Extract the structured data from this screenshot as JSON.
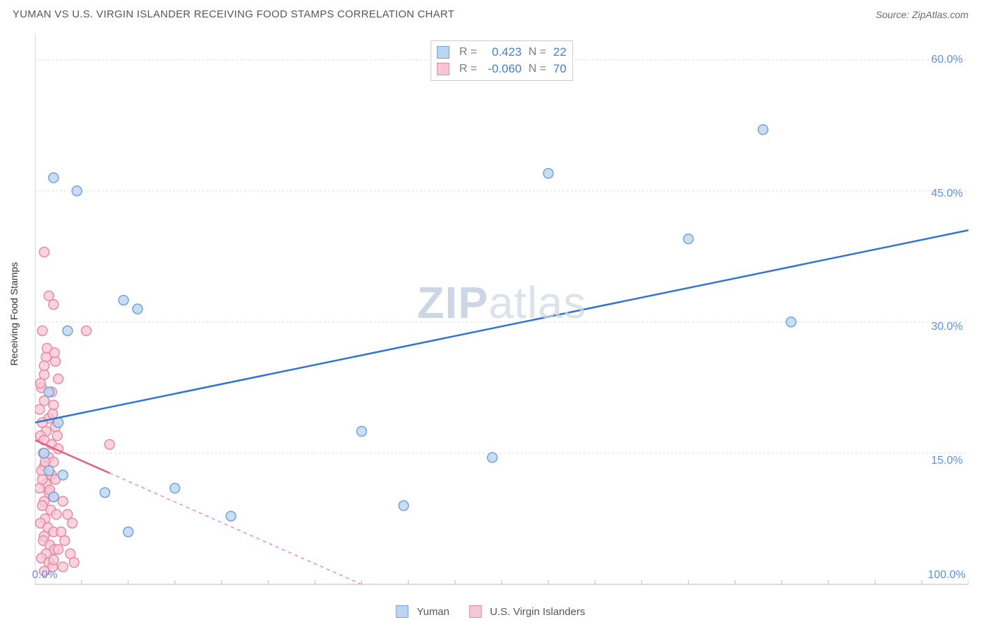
{
  "title": "YUMAN VS U.S. VIRGIN ISLANDER RECEIVING FOOD STAMPS CORRELATION CHART",
  "source": "Source: ZipAtlas.com",
  "ylabel": "Receiving Food Stamps",
  "watermark_a": "ZIP",
  "watermark_b": "atlas",
  "chart": {
    "type": "scatter",
    "background_color": "#ffffff",
    "grid_color": "#dcdce2",
    "axis_color": "#b9b9c0",
    "xlim": [
      0,
      100
    ],
    "ylim": [
      0,
      63
    ],
    "yticks": [
      15.0,
      30.0,
      45.0,
      60.0
    ],
    "ytick_labels": [
      "15.0%",
      "30.0%",
      "45.0%",
      "60.0%"
    ],
    "xticks_major": [
      0,
      50,
      100
    ],
    "xtick_labels": [
      "0.0%",
      "",
      "100.0%"
    ],
    "marker_radius": 7,
    "marker_stroke_width": 1.5,
    "trend_line_width": 2.5
  },
  "series": [
    {
      "name": "Yuman",
      "fill_color": "#bcd5f0",
      "stroke_color": "#6fa3de",
      "line_color": "#2f74d0",
      "r": "0.423",
      "n": "22",
      "trend": {
        "x1": 0,
        "y1": 18.5,
        "x2": 100,
        "y2": 40.5,
        "dashed": false
      },
      "points": [
        [
          2.0,
          46.5
        ],
        [
          4.5,
          45.0
        ],
        [
          3.5,
          29.0
        ],
        [
          2.5,
          18.5
        ],
        [
          1.0,
          15.0
        ],
        [
          1.5,
          13.0
        ],
        [
          2.0,
          10.0
        ],
        [
          9.5,
          32.5
        ],
        [
          11.0,
          31.5
        ],
        [
          15.0,
          11.0
        ],
        [
          7.5,
          10.5
        ],
        [
          10.0,
          6.0
        ],
        [
          21.0,
          7.8
        ],
        [
          35.0,
          17.5
        ],
        [
          39.5,
          9.0
        ],
        [
          49.0,
          14.5
        ],
        [
          55.0,
          47.0
        ],
        [
          70.0,
          39.5
        ],
        [
          78.0,
          52.0
        ],
        [
          81.0,
          30.0
        ],
        [
          1.5,
          22.0
        ],
        [
          3.0,
          12.5
        ]
      ]
    },
    {
      "name": "U.S. Virgin Islanders",
      "fill_color": "#f7c6d3",
      "stroke_color": "#e88aa3",
      "line_color": "#e25c82",
      "r": "-0.060",
      "n": "70",
      "trend": {
        "x1": 0,
        "y1": 16.5,
        "x2": 35,
        "y2": 0,
        "dashed_from_x": 8
      },
      "points": [
        [
          1.0,
          38.0
        ],
        [
          1.5,
          33.0
        ],
        [
          2.0,
          32.0
        ],
        [
          0.8,
          29.0
        ],
        [
          5.5,
          29.0
        ],
        [
          1.2,
          26.0
        ],
        [
          2.2,
          25.5
        ],
        [
          1.0,
          24.0
        ],
        [
          2.5,
          23.5
        ],
        [
          0.7,
          22.5
        ],
        [
          1.8,
          22.0
        ],
        [
          1.0,
          21.0
        ],
        [
          2.0,
          20.5
        ],
        [
          0.5,
          20.0
        ],
        [
          1.5,
          19.0
        ],
        [
          0.8,
          18.5
        ],
        [
          2.2,
          18.0
        ],
        [
          1.2,
          17.5
        ],
        [
          0.6,
          17.0
        ],
        [
          1.0,
          16.5
        ],
        [
          1.8,
          16.0
        ],
        [
          2.5,
          15.5
        ],
        [
          0.9,
          15.0
        ],
        [
          1.5,
          14.5
        ],
        [
          2.0,
          14.0
        ],
        [
          1.0,
          13.5
        ],
        [
          0.7,
          13.0
        ],
        [
          1.8,
          12.5
        ],
        [
          2.2,
          12.0
        ],
        [
          1.2,
          11.5
        ],
        [
          0.5,
          11.0
        ],
        [
          1.5,
          10.5
        ],
        [
          2.0,
          10.0
        ],
        [
          1.0,
          9.5
        ],
        [
          0.8,
          9.0
        ],
        [
          1.7,
          8.5
        ],
        [
          2.3,
          8.0
        ],
        [
          1.1,
          7.5
        ],
        [
          0.6,
          7.0
        ],
        [
          1.4,
          6.5
        ],
        [
          2.0,
          6.0
        ],
        [
          1.0,
          5.5
        ],
        [
          0.9,
          5.0
        ],
        [
          1.6,
          4.5
        ],
        [
          2.1,
          4.0
        ],
        [
          1.2,
          3.5
        ],
        [
          0.7,
          3.0
        ],
        [
          1.5,
          2.5
        ],
        [
          1.9,
          2.0
        ],
        [
          1.0,
          1.5
        ],
        [
          3.0,
          9.5
        ],
        [
          3.5,
          8.0
        ],
        [
          4.0,
          7.0
        ],
        [
          2.8,
          6.0
        ],
        [
          3.2,
          5.0
        ],
        [
          2.5,
          4.0
        ],
        [
          3.8,
          3.5
        ],
        [
          2.0,
          2.8
        ],
        [
          3.0,
          2.0
        ],
        [
          4.2,
          2.5
        ],
        [
          8.0,
          16.0
        ],
        [
          1.3,
          27.0
        ],
        [
          2.1,
          26.5
        ],
        [
          1.0,
          25.0
        ],
        [
          0.6,
          23.0
        ],
        [
          1.9,
          19.5
        ],
        [
          2.4,
          17.0
        ],
        [
          1.1,
          14.0
        ],
        [
          0.8,
          12.0
        ],
        [
          1.6,
          10.8
        ]
      ]
    }
  ],
  "legend_labels": {
    "r_prefix": "R =",
    "n_prefix": "N ="
  }
}
